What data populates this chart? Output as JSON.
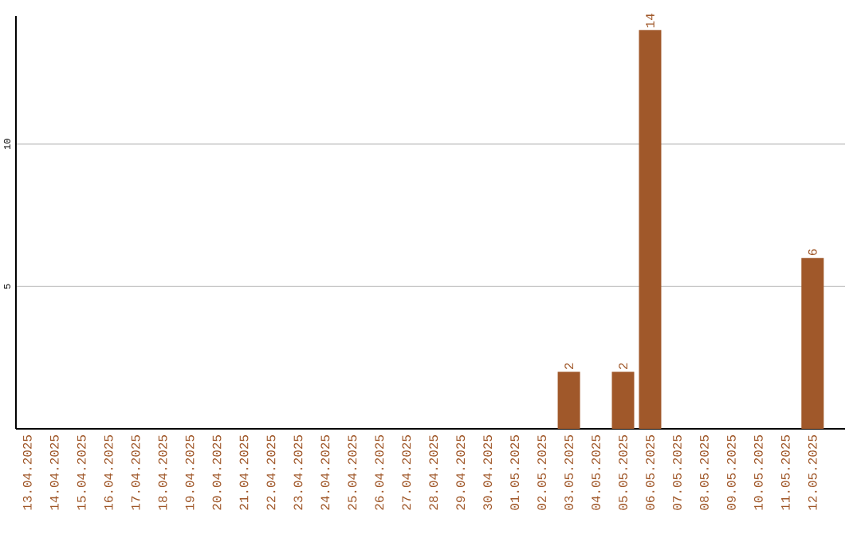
{
  "chart_data": {
    "type": "bar",
    "categories": [
      "13.04.2025",
      "14.04.2025",
      "15.04.2025",
      "16.04.2025",
      "17.04.2025",
      "18.04.2025",
      "19.04.2025",
      "20.04.2025",
      "21.04.2025",
      "22.04.2025",
      "23.04.2025",
      "24.04.2025",
      "25.04.2025",
      "26.04.2025",
      "27.04.2025",
      "28.04.2025",
      "29.04.2025",
      "30.04.2025",
      "01.05.2025",
      "02.05.2025",
      "03.05.2025",
      "04.05.2025",
      "05.05.2025",
      "06.05.2025",
      "07.05.2025",
      "08.05.2025",
      "09.05.2025",
      "10.05.2025",
      "11.05.2025",
      "12.05.2025"
    ],
    "values": [
      0,
      0,
      0,
      0,
      0,
      0,
      0,
      0,
      0,
      0,
      0,
      0,
      0,
      0,
      0,
      0,
      0,
      0,
      0,
      0,
      2,
      0,
      2,
      14,
      0,
      0,
      0,
      0,
      0,
      6
    ],
    "value_labels": [
      null,
      null,
      null,
      null,
      null,
      null,
      null,
      null,
      null,
      null,
      null,
      null,
      null,
      null,
      null,
      null,
      null,
      null,
      null,
      null,
      "2",
      null,
      "2",
      "14",
      null,
      null,
      null,
      null,
      null,
      "6"
    ],
    "color": "#a0582a",
    "ylim": [
      0,
      14.5
    ],
    "yticks": [
      5,
      10
    ],
    "grid": "y"
  }
}
